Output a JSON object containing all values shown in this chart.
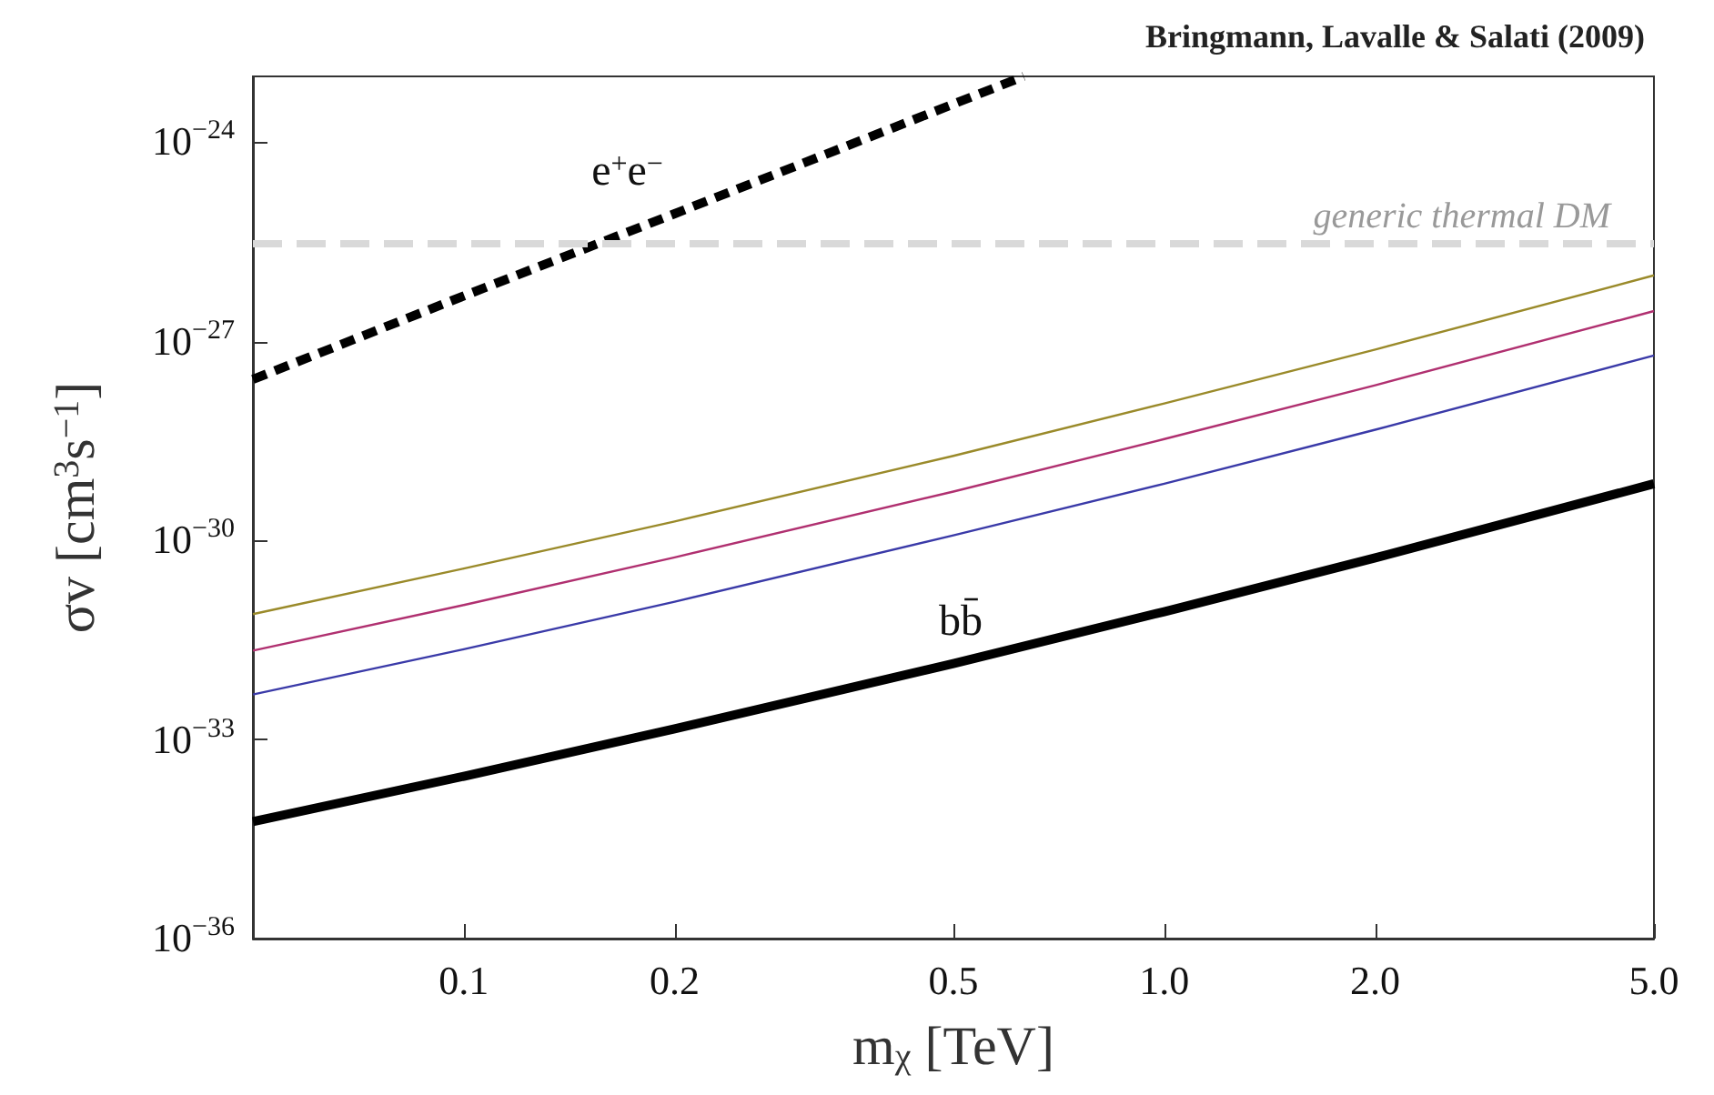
{
  "chart_data": {
    "type": "line",
    "title": "Bringmann, Lavalle & Salati (2009)",
    "xlabel": "m$_{χ}$ [TeV]",
    "ylabel": "σv [cm$^{3}$s$^{−1}$]",
    "log": "xy",
    "grid": false,
    "legend": false,
    "marker": "none",
    "xlim": [
      0.05,
      5
    ],
    "xticks": [
      0.1,
      0.2,
      0.5,
      {
        "value": 1,
        "label": "1.0"
      },
      {
        "value": 2,
        "label": "2.0"
      },
      {
        "value": 5,
        "label": "5.0"
      }
    ],
    "ylim": [
      1e-36,
      1e-23
    ],
    "yticks": [
      {
        "value": 1e-36,
        "label": "10$^{−36}$"
      },
      {
        "value": 1e-33,
        "label": "10$^{−33}$"
      },
      {
        "value": 1e-30,
        "label": "10$^{−30}$"
      },
      {
        "value": 1e-27,
        "label": "10$^{−27}$"
      },
      {
        "value": 1e-24,
        "label": "10$^{−24}$"
      }
    ],
    "x": [
      0.05,
      0.1,
      0.2,
      0.5,
      1,
      2,
      5
    ],
    "series": [
      {
        "name": "e$^{+}$e$^{−}$",
        "color": "#000000",
        "line_style": "dashed",
        "x": [
          0.05,
          0.1,
          0.2,
          0.63
        ],
        "values": [
          2.7e-28,
          4.9e-27,
          8.5e-26,
          1e-23
        ]
      },
      {
        "color": "#9a8a2a",
        "values": [
          7.8e-32,
          3.8e-31,
          1.95e-30,
          1.9e-29,
          1.17e-28,
          7.6e-28,
          1e-26
        ]
      },
      {
        "color": "#b03070",
        "values": [
          2.2e-32,
          1.07e-31,
          5.6e-31,
          5.5e-30,
          3.4e-29,
          2.2e-28,
          2.9e-27
        ]
      },
      {
        "color": "#3a3aa8",
        "values": [
          4.8e-33,
          2.3e-32,
          1.2e-31,
          1.2e-30,
          7.2e-30,
          4.7e-29,
          6.2e-28
        ]
      },
      {
        "name": "bb̄",
        "color": "#000000",
        "values": [
          5.8e-35,
          2.8e-34,
          1.45e-33,
          1.4e-32,
          8.5e-32,
          5.5e-31,
          7.2e-30
        ]
      }
    ],
    "ref_lines": [
      {
        "axis": "y",
        "value": 3e-26,
        "label": "generic thermal DM",
        "color": "#d9d9d9",
        "line_style": "dashed"
      }
    ]
  }
}
